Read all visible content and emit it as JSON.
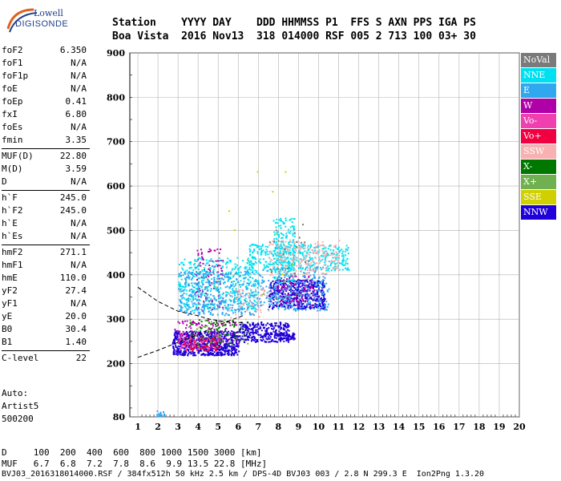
{
  "logo": {
    "line1": "Lowell",
    "line2": "DIGISONDE"
  },
  "header": {
    "line1": "Station    YYYY DAY    DDD HHMMSS P1  FFS S AXN PPS IGA PS",
    "line2": "Boa Vista  2016 Nov13  318 014000 RSF 005 2 713 100 03+ 30"
  },
  "parameters": [
    {
      "name": "foF2",
      "value": "6.350"
    },
    {
      "name": "foF1",
      "value": "N/A"
    },
    {
      "name": "foF1p",
      "value": "N/A"
    },
    {
      "name": "foE",
      "value": "N/A"
    },
    {
      "name": "foEp",
      "value": "0.41"
    },
    {
      "name": "fxI",
      "value": "6.80"
    },
    {
      "name": "foEs",
      "value": "N/A"
    },
    {
      "name": "fmin",
      "value": "3.35"
    },
    {
      "name": "MUF(D)",
      "value": "22.80"
    },
    {
      "name": "M(D)",
      "value": "3.59"
    },
    {
      "name": "D",
      "value": "N/A"
    },
    {
      "name": "h`F",
      "value": "245.0"
    },
    {
      "name": "h`F2",
      "value": "245.0"
    },
    {
      "name": "h`E",
      "value": "N/A"
    },
    {
      "name": "h`Es",
      "value": "N/A"
    },
    {
      "name": "hmF2",
      "value": "271.1"
    },
    {
      "name": "hmF1",
      "value": "N/A"
    },
    {
      "name": "hmE",
      "value": "110.0"
    },
    {
      "name": "yF2",
      "value": "27.4"
    },
    {
      "name": "yF1",
      "value": "N/A"
    },
    {
      "name": "yE",
      "value": "20.0"
    },
    {
      "name": "B0",
      "value": "30.4"
    },
    {
      "name": "B1",
      "value": "1.40"
    },
    {
      "name": "C-level",
      "value": "22"
    }
  ],
  "auto": {
    "line1": "Auto:",
    "line2": "Artist5",
    "line3": "500200"
  },
  "legend": [
    {
      "label": "NoVal",
      "color": "#7a7a7a"
    },
    {
      "label": "NNE",
      "color": "#00e0f0"
    },
    {
      "label": "E",
      "color": "#30a8f0"
    },
    {
      "label": "W",
      "color": "#b000a8"
    },
    {
      "label": "Vo-",
      "color": "#f040b0"
    },
    {
      "label": "Vo+",
      "color": "#f00040"
    },
    {
      "label": "SSW",
      "color": "#f8b0b0"
    },
    {
      "label": "X-",
      "color": "#007800"
    },
    {
      "label": "X+",
      "color": "#70b050"
    },
    {
      "label": "SSE",
      "color": "#d0d000"
    },
    {
      "label": "NNW",
      "color": "#2000d8"
    }
  ],
  "footer": {
    "d_row": "D     100  200  400  600  800 1000 1500 3000 [km]",
    "muf_row": "MUF   6.7  6.8  7.2  7.8  8.6  9.9 13.5 22.8 [MHz]",
    "file_row": "BVJ03_2016318014000.RSF / 384fx512h 50 kHz 2.5 km / DPS-4D BVJ03 003 / 2.8 N 299.3 E  Ion2Png 1.3.20"
  },
  "chart_data": {
    "type": "scatter",
    "xlabel": "",
    "ylabel": "",
    "xlim": [
      0.6,
      20.0
    ],
    "ylim": [
      80,
      900
    ],
    "xticks": [
      "1",
      "2",
      "3",
      "4",
      "5",
      "6",
      "7",
      "8",
      "9",
      "10",
      "11",
      "12",
      "13",
      "14",
      "15",
      "16",
      "17",
      "18",
      "19",
      "20"
    ],
    "yticks": [
      "80",
      "200",
      "300",
      "400",
      "500",
      "600",
      "700",
      "800",
      "900"
    ],
    "grid": true,
    "legend_position": "right",
    "clusters": [
      {
        "series": "NNW",
        "color": "#2000d8",
        "x": [
          2.7,
          6.0
        ],
        "y": [
          220,
          275
        ],
        "n": 700
      },
      {
        "series": "NNW",
        "color": "#2000d8",
        "x": [
          6.0,
          8.5
        ],
        "y": [
          250,
          295
        ],
        "n": 300
      },
      {
        "series": "NNW",
        "color": "#2000d8",
        "x": [
          7.5,
          10.3
        ],
        "y": [
          325,
          390
        ],
        "n": 500
      },
      {
        "series": "NNW",
        "color": "#2000d8",
        "x": [
          8.0,
          8.8
        ],
        "y": [
          255,
          270
        ],
        "n": 60
      },
      {
        "series": "W",
        "color": "#b000a8",
        "x": [
          2.8,
          6.0
        ],
        "y": [
          235,
          300
        ],
        "n": 120
      },
      {
        "series": "W",
        "color": "#b000a8",
        "x": [
          3.8,
          5.2
        ],
        "y": [
          320,
          460
        ],
        "n": 120
      },
      {
        "series": "W",
        "color": "#b000a8",
        "x": [
          7.8,
          9.8
        ],
        "y": [
          330,
          400
        ],
        "n": 100
      },
      {
        "series": "NNE",
        "color": "#00e0f0",
        "x": [
          3.0,
          7.0
        ],
        "y": [
          320,
          440
        ],
        "n": 450
      },
      {
        "series": "NNE",
        "color": "#00e0f0",
        "x": [
          6.5,
          11.5
        ],
        "y": [
          410,
          470
        ],
        "n": 400
      },
      {
        "series": "NNE",
        "color": "#00e0f0",
        "x": [
          7.7,
          8.8
        ],
        "y": [
          380,
          530
        ],
        "n": 200
      },
      {
        "series": "E",
        "color": "#30a8f0",
        "x": [
          3.0,
          7.0
        ],
        "y": [
          310,
          410
        ],
        "n": 350
      },
      {
        "series": "E",
        "color": "#30a8f0",
        "x": [
          7.0,
          10.5
        ],
        "y": [
          320,
          420
        ],
        "n": 250
      },
      {
        "series": "E",
        "color": "#30a8f0",
        "x": [
          1.9,
          2.3
        ],
        "y": [
          80,
          95
        ],
        "n": 20
      },
      {
        "series": "SSW",
        "color": "#f8b0b0",
        "x": [
          7.5,
          11.0
        ],
        "y": [
          400,
          480
        ],
        "n": 200
      },
      {
        "series": "SSW",
        "color": "#f8b0b0",
        "x": [
          5.5,
          7.5
        ],
        "y": [
          300,
          370
        ],
        "n": 60
      },
      {
        "series": "Vo+",
        "color": "#f00040",
        "x": [
          3.2,
          5.0
        ],
        "y": [
          230,
          260
        ],
        "n": 70
      },
      {
        "series": "Vo-",
        "color": "#f040b0",
        "x": [
          3.0,
          5.0
        ],
        "y": [
          235,
          270
        ],
        "n": 60
      },
      {
        "series": "X-",
        "color": "#007800",
        "x": [
          3.5,
          6.5
        ],
        "y": [
          240,
          300
        ],
        "n": 60
      },
      {
        "series": "X+",
        "color": "#70b050",
        "x": [
          3.5,
          6.5
        ],
        "y": [
          240,
          300
        ],
        "n": 40
      },
      {
        "series": "SSE",
        "color": "#d0d000",
        "x": [
          4.0,
          10.5
        ],
        "y": [
          330,
          640
        ],
        "n": 12
      },
      {
        "series": "NoVal",
        "color": "#7a7a7a",
        "x": [
          7.5,
          9.5
        ],
        "y": [
          330,
          520
        ],
        "n": 30
      }
    ],
    "traces": [
      {
        "name": "profile-upper",
        "style": "dashed",
        "x": [
          1.0,
          2.0,
          3.0,
          3.8,
          4.6,
          5.4,
          6.35
        ],
        "y": [
          372,
          340,
          318,
          310,
          300,
          294,
          292
        ]
      },
      {
        "name": "profile-lower",
        "style": "dashed",
        "x": [
          1.0,
          2.0,
          3.0,
          3.8,
          4.6,
          5.4,
          6.35
        ],
        "y": [
          214,
          230,
          248,
          262,
          278,
          294,
          310
        ]
      }
    ]
  }
}
